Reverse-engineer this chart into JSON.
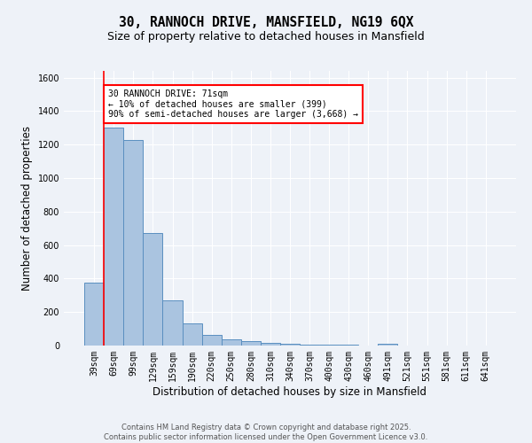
{
  "title_line1": "30, RANNOCH DRIVE, MANSFIELD, NG19 6QX",
  "title_line2": "Size of property relative to detached houses in Mansfield",
  "xlabel": "Distribution of detached houses by size in Mansfield",
  "ylabel": "Number of detached properties",
  "categories": [
    "39sqm",
    "69sqm",
    "99sqm",
    "129sqm",
    "159sqm",
    "190sqm",
    "220sqm",
    "250sqm",
    "280sqm",
    "310sqm",
    "340sqm",
    "370sqm",
    "400sqm",
    "430sqm",
    "460sqm",
    "491sqm",
    "521sqm",
    "551sqm",
    "581sqm",
    "611sqm",
    "641sqm"
  ],
  "values": [
    375,
    1300,
    1230,
    670,
    270,
    130,
    65,
    38,
    25,
    18,
    8,
    5,
    5,
    3,
    0,
    12,
    0,
    0,
    0,
    0,
    0
  ],
  "bar_color": "#aac4e0",
  "bar_edge_color": "#5a8fc0",
  "red_line_x": 1,
  "ylim": [
    0,
    1640
  ],
  "yticks": [
    0,
    200,
    400,
    600,
    800,
    1000,
    1200,
    1400,
    1600
  ],
  "annotation_text": "30 RANNOCH DRIVE: 71sqm\n← 10% of detached houses are smaller (399)\n90% of semi-detached houses are larger (3,668) →",
  "footer_line1": "Contains HM Land Registry data © Crown copyright and database right 2025.",
  "footer_line2": "Contains public sector information licensed under the Open Government Licence v3.0.",
  "bg_color": "#eef2f8",
  "grid_color": "#ffffff",
  "title_fontsize": 10.5,
  "subtitle_fontsize": 9,
  "axis_label_fontsize": 8.5,
  "tick_fontsize": 7,
  "annotation_fontsize": 7,
  "footer_fontsize": 6
}
